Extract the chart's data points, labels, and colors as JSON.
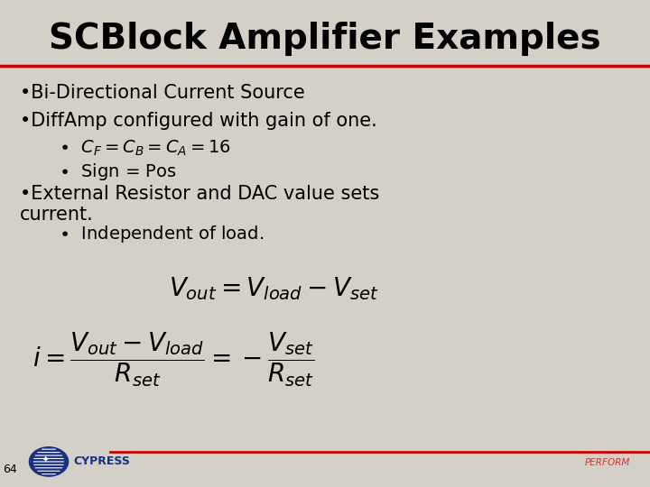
{
  "title": "SCBlock Amplifier Examples",
  "title_fontsize": 28,
  "title_color": "#000000",
  "bg_color": "#d4d0c8",
  "top_bar_color": "#cc0000",
  "bottom_bar_color": "#cc0000",
  "slide_number": "64",
  "perform_text": "PERFORM",
  "perform_color": "#cc0000",
  "bullet1": "•Bi-Directional Current Source",
  "bullet2": "•DiffAmp configured with gain of one.",
  "sub_bullet2": "•  Sign = Pos",
  "bullet3": "•External Resistor and DAC value sets\ncurrent.",
  "sub_bullet3": "•  Independent of load.",
  "eq_fontsize": 20,
  "text_fontsize": 15,
  "sub_text_fontsize": 14
}
